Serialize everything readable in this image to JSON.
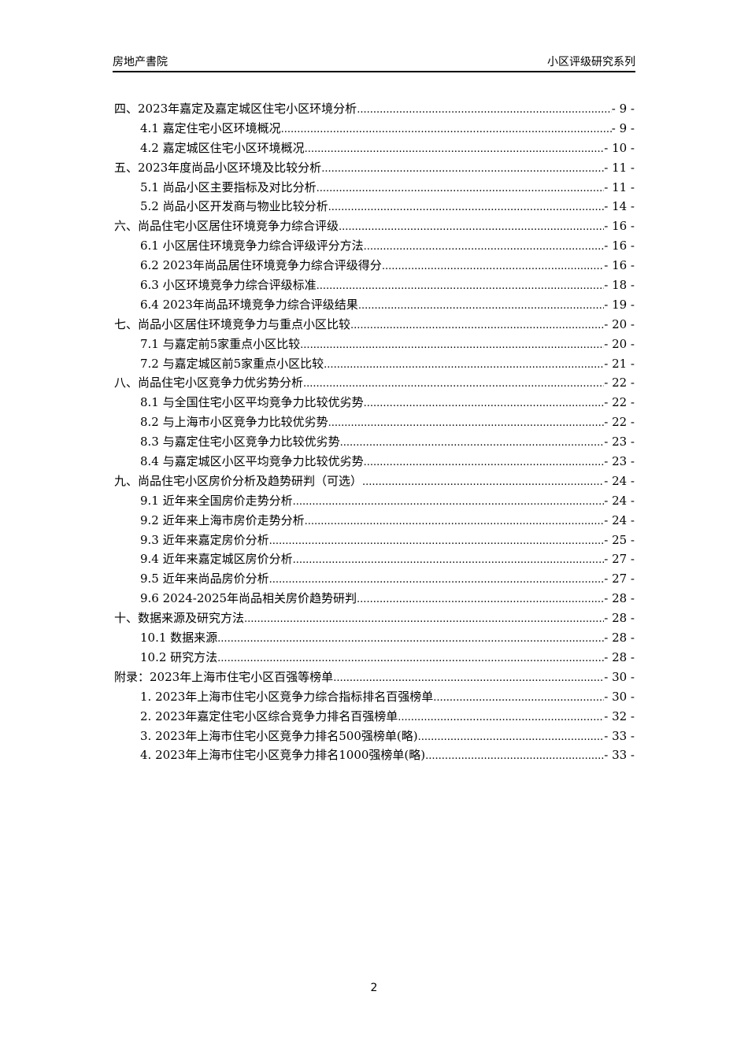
{
  "header": {
    "left": "房地产書院",
    "right": "小区评级研究系列"
  },
  "toc": [
    {
      "level": 1,
      "title": "四、2023年嘉定及嘉定城区住宅小区环境分析",
      "page": "- 9 -"
    },
    {
      "level": 2,
      "title": "4.1 嘉定住宅小区环境概况",
      "page": "- 9 -"
    },
    {
      "level": 2,
      "title": "4.2 嘉定城区住宅小区环境概况",
      "page": "- 10 -"
    },
    {
      "level": 1,
      "title": "五、2023年度尚品小区环境及比较分析",
      "page": "- 11 -"
    },
    {
      "level": 2,
      "title": "5.1 尚品小区主要指标及对比分析",
      "page": "- 11 -"
    },
    {
      "level": 2,
      "title": "5.2 尚品小区开发商与物业比较分析",
      "page": "- 14 -"
    },
    {
      "level": 1,
      "title": "六、尚品住宅小区居住环境竞争力综合评级",
      "page": "- 16 -"
    },
    {
      "level": 2,
      "title": "6.1 小区居住环境竞争力综合评级评分方法",
      "page": "- 16 -"
    },
    {
      "level": 2,
      "title": "6.2 2023年尚品居住环境竞争力综合评级得分",
      "page": "- 16 -"
    },
    {
      "level": 2,
      "title": "6.3 小区环境竞争力综合评级标准",
      "page": "- 18 -"
    },
    {
      "level": 2,
      "title": "6.4 2023年尚品环境竞争力综合评级结果",
      "page": "- 19 -"
    },
    {
      "level": 1,
      "title": "七、尚品小区居住环境竞争力与重点小区比较",
      "page": "- 20 -"
    },
    {
      "level": 2,
      "title": "7.1 与嘉定前5家重点小区比较",
      "page": "- 20 -"
    },
    {
      "level": 2,
      "title": "7.2 与嘉定城区前5家重点小区比较",
      "page": "- 21 -"
    },
    {
      "level": 1,
      "title": "八、尚品住宅小区竞争力优劣势分析",
      "page": "- 22 -"
    },
    {
      "level": 2,
      "title": "8.1 与全国住宅小区平均竞争力比较优劣势",
      "page": "- 22 -"
    },
    {
      "level": 2,
      "title": "8.2 与上海市小区竞争力比较优劣势",
      "page": "- 22 -"
    },
    {
      "level": 2,
      "title": "8.3 与嘉定住宅小区竞争力比较优劣势",
      "page": "- 23 -"
    },
    {
      "level": 2,
      "title": "8.4 与嘉定城区小区平均竞争力比较优劣势",
      "page": "- 23 -"
    },
    {
      "level": 1,
      "title": "九、尚品住宅小区房价分析及趋势研判（可选）",
      "page": "- 24 -"
    },
    {
      "level": 2,
      "title": "9.1 近年来全国房价走势分析",
      "page": "- 24 -"
    },
    {
      "level": 2,
      "title": "9.2 近年来上海市房价走势分析",
      "page": "- 24 -"
    },
    {
      "level": 2,
      "title": "9.3 近年来嘉定房价分析",
      "page": "- 25 -"
    },
    {
      "level": 2,
      "title": "9.4 近年来嘉定城区房价分析",
      "page": "- 27 -"
    },
    {
      "level": 2,
      "title": "9.5 近年来尚品房价分析",
      "page": "- 27 -"
    },
    {
      "level": 2,
      "title": "9.6 2024-2025年尚品相关房价趋势研判",
      "page": "- 28 -"
    },
    {
      "level": 1,
      "title": "十、数据来源及研究方法",
      "page": "- 28 -"
    },
    {
      "level": 2,
      "title": "10.1 数据来源",
      "page": "- 28 -"
    },
    {
      "level": 2,
      "title": "10.2 研究方法",
      "page": "- 28 -"
    },
    {
      "level": 1,
      "title": "附录：2023年上海市住宅小区百强等榜单",
      "page": "- 30 -"
    },
    {
      "level": 2,
      "title": "1. 2023年上海市住宅小区竞争力综合指标排名百强榜单",
      "page": "- 30 -"
    },
    {
      "level": 2,
      "title": "2. 2023年嘉定住宅小区综合竞争力排名百强榜单",
      "page": "- 32 -"
    },
    {
      "level": 2,
      "title": "3. 2023年上海市住宅小区竞争力排名500强榜单(略)",
      "page": "- 33 -"
    },
    {
      "level": 2,
      "title": "4. 2023年上海市住宅小区竞争力排名1000强榜单(略)",
      "page": "- 33 -"
    }
  ],
  "footer": {
    "page_number": "2"
  }
}
